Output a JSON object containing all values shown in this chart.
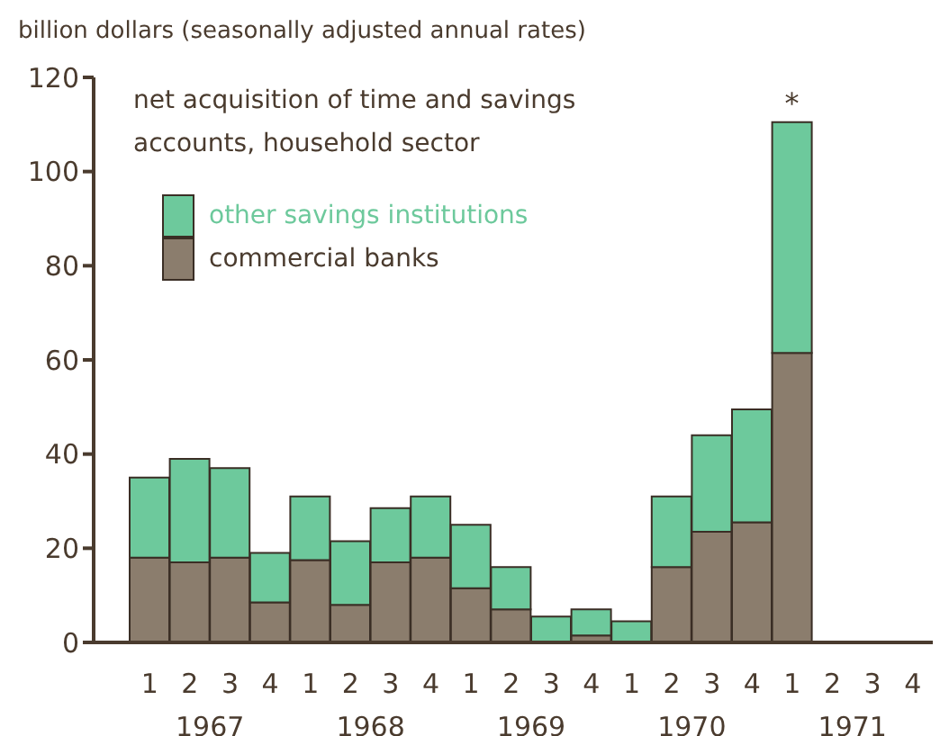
{
  "chart_data": {
    "type": "bar",
    "stacked": true,
    "title": "net acquisition of time and savings accounts, household sector",
    "ylabel": "billion dollars (seasonally adjusted annual rates)",
    "categories": [
      "1",
      "2",
      "3",
      "4",
      "1",
      "2",
      "3",
      "4",
      "1",
      "2",
      "3",
      "4",
      "1",
      "2",
      "3",
      "4",
      "1",
      "2",
      "3",
      "4"
    ],
    "annotations": [
      "1967",
      "1968",
      "1969",
      "1970",
      "1971"
    ],
    "series": [
      {
        "name": "commercial banks",
        "color": "#8b7d6d",
        "values": [
          18,
          17,
          18,
          8.5,
          17.5,
          8,
          17,
          18,
          11.5,
          7,
          0,
          1.5,
          0,
          16,
          23.5,
          25.5,
          61.5,
          null,
          null,
          null
        ]
      },
      {
        "name": "other savings institutions",
        "color": "#6dc99c",
        "values": [
          17,
          22,
          19,
          10.5,
          13.5,
          13.5,
          11.5,
          13,
          13.5,
          9,
          5.5,
          5.5,
          4.5,
          15,
          20.5,
          24,
          49,
          null,
          null,
          null
        ],
        "value_labels": [
          null,
          null,
          null,
          null,
          null,
          null,
          null,
          null,
          null,
          null,
          null,
          null,
          null,
          null,
          null,
          null,
          "*",
          null,
          null,
          null
        ]
      }
    ],
    "ylim": [
      0,
      120
    ],
    "yticks": [
      0,
      20,
      40,
      60,
      80,
      100,
      120
    ],
    "grid": false,
    "legend": "top left"
  }
}
